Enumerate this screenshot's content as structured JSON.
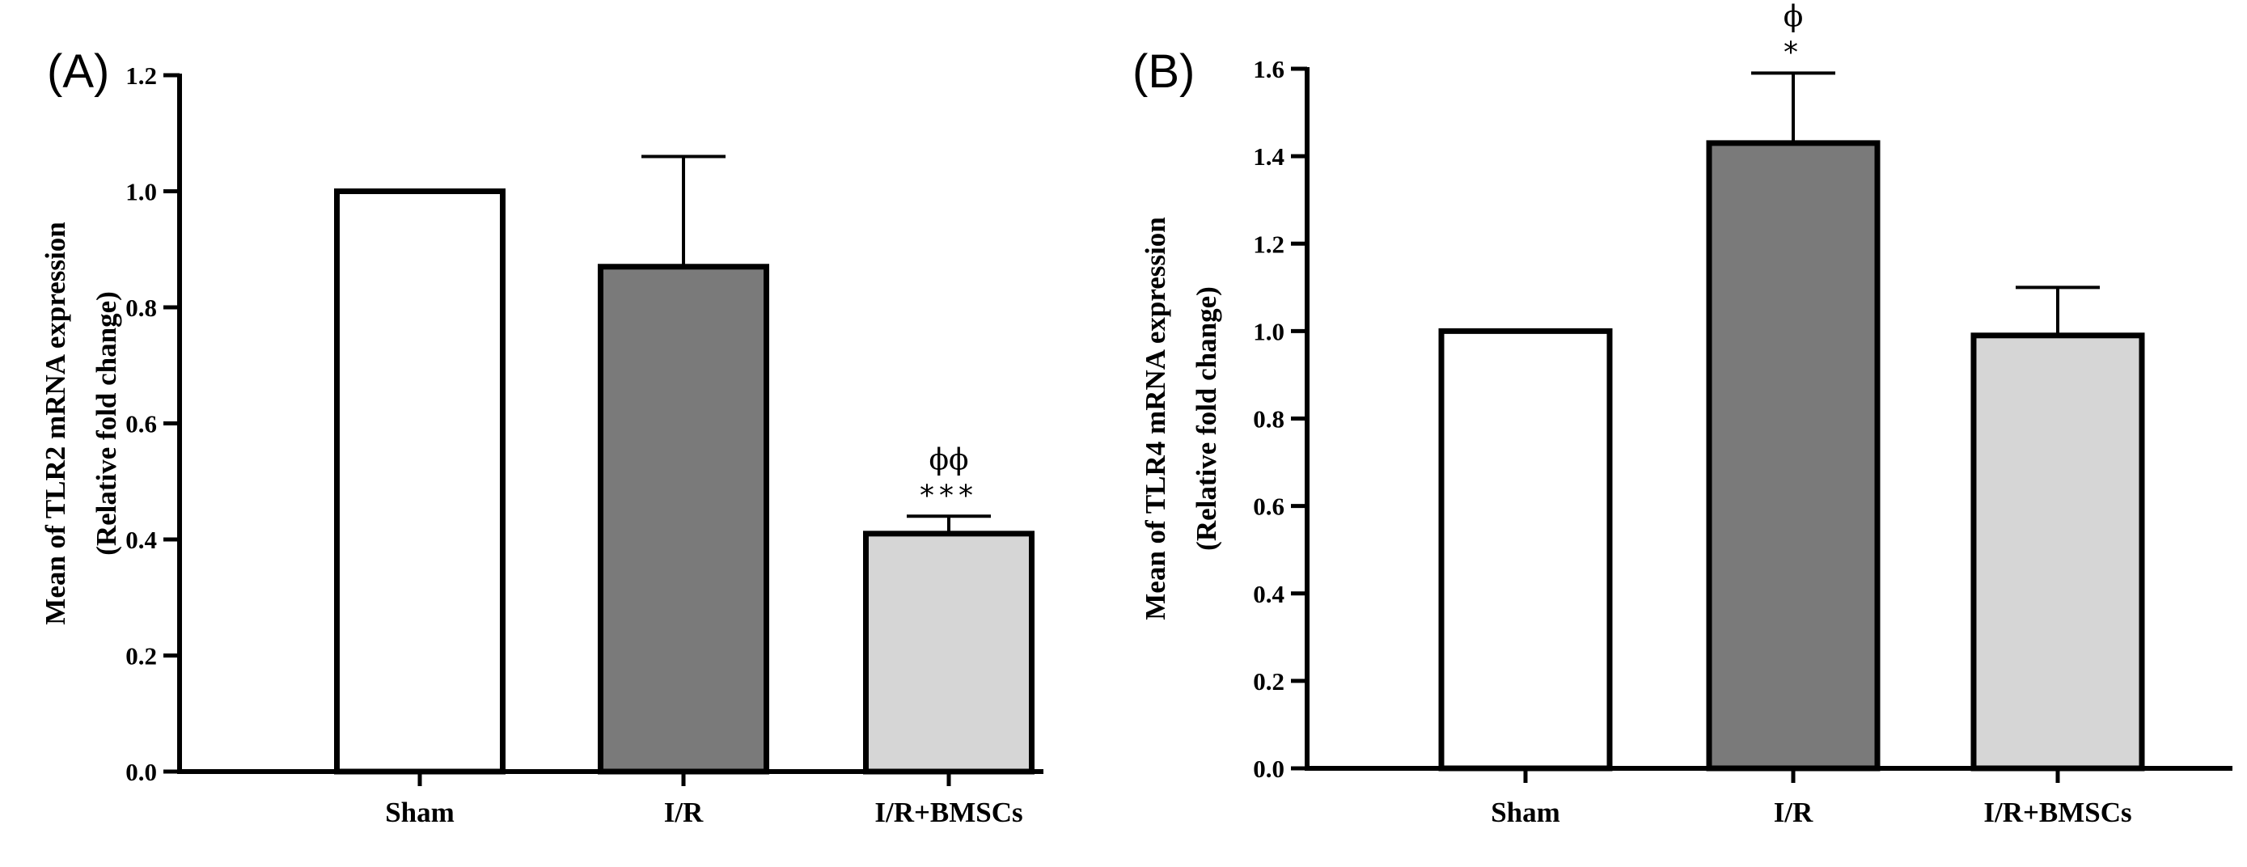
{
  "chart_data": [
    {
      "type": "bar",
      "panel": "(A)",
      "ylabel": [
        "Mean of TLR2 mRNA expression",
        "(Relative fold change)"
      ],
      "categories": [
        "Sham",
        "I/R",
        "I/R+BMSCs"
      ],
      "values": [
        1.0,
        0.87,
        0.41
      ],
      "errors": [
        0.0,
        0.19,
        0.03
      ],
      "colors": [
        "#ffffff",
        "#7a7a7a",
        "#d6d6d6"
      ],
      "annotations": [
        null,
        null,
        [
          "ϕϕ",
          "***"
        ]
      ],
      "ylim": [
        0,
        1.2
      ],
      "yticks": [
        "0.0",
        "0.2",
        "0.4",
        "0.6",
        "0.8",
        "1.0",
        "1.2"
      ],
      "grid": false
    },
    {
      "type": "bar",
      "panel": "(B)",
      "ylabel": [
        "Mean of TLR4 mRNA expression",
        "(Relative fold change)"
      ],
      "categories": [
        "Sham",
        "I/R",
        "I/R+BMSCs"
      ],
      "values": [
        1.0,
        1.43,
        0.99
      ],
      "errors": [
        0.0,
        0.16,
        0.11
      ],
      "colors": [
        "#ffffff",
        "#7a7a7a",
        "#d6d6d6"
      ],
      "annotations": [
        null,
        [
          "ϕ",
          "*"
        ],
        null
      ],
      "ylim": [
        0,
        1.6
      ],
      "yticks": [
        "0.0",
        "0.2",
        "0.4",
        "0.6",
        "0.8",
        "1.0",
        "1.2",
        "1.4",
        "1.6"
      ],
      "grid": false
    }
  ]
}
